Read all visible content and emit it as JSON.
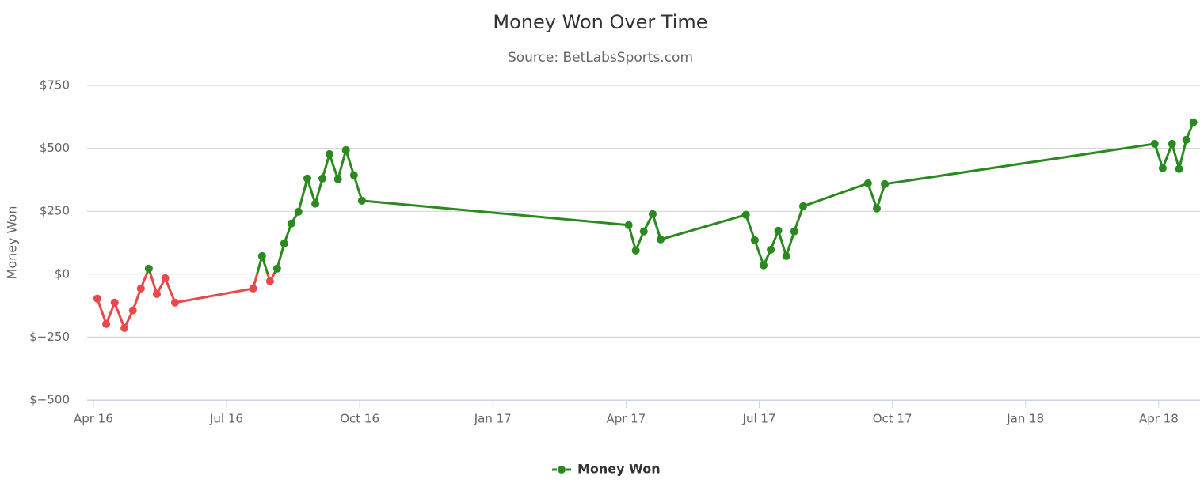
{
  "chart_data": {
    "type": "line",
    "title": "Money Won Over Time",
    "subtitle": "Source: BetLabsSports.com",
    "y_axis_label": "Money Won",
    "x": [
      0.09,
      0.29,
      0.48,
      0.7,
      0.89,
      1.07,
      1.25,
      1.43,
      1.62,
      1.84,
      3.6,
      3.8,
      3.98,
      4.14,
      4.3,
      4.46,
      4.62,
      4.82,
      5.0,
      5.16,
      5.32,
      5.51,
      5.69,
      5.87,
      6.05,
      12.06,
      12.22,
      12.4,
      12.6,
      12.78,
      14.7,
      14.9,
      15.1,
      15.26,
      15.43,
      15.61,
      15.79,
      15.99,
      17.45,
      17.65,
      17.83,
      23.91,
      24.09,
      24.3,
      24.46,
      24.62,
      24.78
    ],
    "series": [
      {
        "name": "Money Won",
        "color": "#2a8a1f",
        "negative_color": "#e84a4a",
        "values": [
          -97,
          -198,
          -113,
          -214,
          -144,
          -57,
          22,
          -79,
          -16,
          -113,
          -57,
          72,
          -28,
          22,
          122,
          201,
          248,
          380,
          280,
          380,
          477,
          377,
          493,
          393,
          292,
          195,
          94,
          170,
          239,
          138,
          236,
          135,
          35,
          97,
          173,
          72,
          170,
          270,
          361,
          261,
          358,
          518,
          421,
          518,
          418,
          534,
          603
        ]
      }
    ],
    "xlim": [
      -0.14,
      24.93
    ],
    "xticks": [
      {
        "value": 0,
        "label": "Apr 16"
      },
      {
        "value": 3,
        "label": "Jul 16"
      },
      {
        "value": 6,
        "label": "Oct 16"
      },
      {
        "value": 9,
        "label": "Jan 17"
      },
      {
        "value": 12,
        "label": "Apr 17"
      },
      {
        "value": 15,
        "label": "Jul 17"
      },
      {
        "value": 18,
        "label": "Oct 17"
      },
      {
        "value": 21,
        "label": "Jan 18"
      },
      {
        "value": 24,
        "label": "Apr 18"
      }
    ],
    "ylim": [
      -500,
      750
    ],
    "yticks": [
      {
        "value": -500,
        "label": "$−500"
      },
      {
        "value": -250,
        "label": "$−250"
      },
      {
        "value": 0,
        "label": "$0"
      },
      {
        "value": 250,
        "label": "$250"
      },
      {
        "value": 500,
        "label": "$500"
      },
      {
        "value": 750,
        "label": "$750"
      }
    ],
    "grid": true,
    "legend": "bottom"
  }
}
